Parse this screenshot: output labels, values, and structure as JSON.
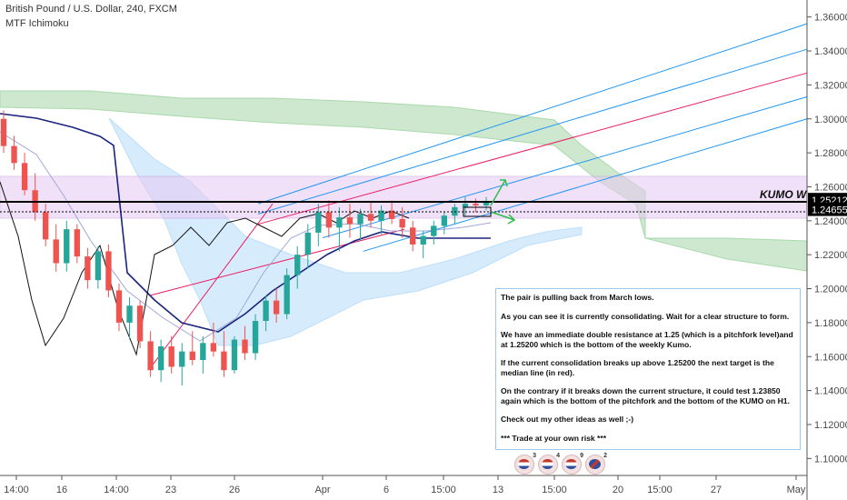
{
  "header": {
    "symbol": "British Pound / U.S. Dollar, 240, FXCM",
    "indicator": "MTF Ichimoku"
  },
  "note": {
    "paragraphs": [
      "The pair is pulling back from March lows.",
      "As you can see it is currently consolidating. Wait for a clear structure to form.",
      "We have an immediate double resistance at 1.25 (which is a pitchfork level)and at 1.25200 which is the bottom of the weekly Kumo.",
      "If the current consolidation breaks up above 1.25200 the next target is the median line (in red).",
      "On the contrary if it breaks down the current structure, it could test 1.23850 again which is the bottom of the pitchfork and the bottom of the KUMO on H1.",
      "Check out my other ideas as well ;-)",
      "*** Trade at your own risk ***"
    ]
  },
  "events": [
    {
      "count": "3",
      "flag": "us-flag-icon"
    },
    {
      "count": "4",
      "flag": "us-flag-icon"
    },
    {
      "count": "9",
      "flag": "us-flag-icon"
    },
    {
      "count": "2",
      "flag": "uk-flag-icon"
    }
  ],
  "chart_data": {
    "type": "candlestick",
    "title": "British Pound / U.S. Dollar, 240, FXCM",
    "x_tick_labels": [
      "14:00",
      "16",
      "14:00",
      "23",
      "26",
      "Apr",
      "6",
      "15:00",
      "13",
      "15:00",
      "20",
      "15:00",
      "27",
      "May"
    ],
    "y_tick_labels": [
      "1.36000",
      "1.34000",
      "1.32000",
      "1.30000",
      "1.28000",
      "1.26000",
      "1.24000",
      "1.22000",
      "1.20000",
      "1.18000",
      "1.16000",
      "1.14000",
      "1.12000",
      "1.10000"
    ],
    "ylim": [
      1.09,
      1.37
    ],
    "price_labels": [
      {
        "label": "1.25212",
        "value": 1.25212,
        "color": "#000000"
      },
      {
        "label": "1.24655",
        "value": 1.24655,
        "color": "#000000"
      }
    ],
    "annotations": [
      {
        "text": "KUMO W",
        "level": 1.25212
      }
    ],
    "zones": [
      {
        "name": "weekly-kumo-band",
        "from": 1.242,
        "to": 1.267,
        "color": "#e7c9f3"
      }
    ],
    "colors": {
      "up": "#26a69a",
      "down": "#ef5350",
      "median": "#e91e63",
      "pitchfork": "#2196f3",
      "kumo_weekly": "#a5d6a7",
      "kumo_h4": "#bbdefb",
      "kijun": "#1a237e"
    },
    "candles": [
      [
        1.3,
        1.305,
        1.28,
        1.284
      ],
      [
        1.284,
        1.29,
        1.27,
        1.274
      ],
      [
        1.274,
        1.28,
        1.255,
        1.258
      ],
      [
        1.258,
        1.268,
        1.24,
        1.245
      ],
      [
        1.245,
        1.25,
        1.225,
        1.229
      ],
      [
        1.229,
        1.238,
        1.21,
        1.215
      ],
      [
        1.215,
        1.24,
        1.21,
        1.235
      ],
      [
        1.235,
        1.238,
        1.215,
        1.219
      ],
      [
        1.219,
        1.224,
        1.2,
        1.205
      ],
      [
        1.205,
        1.225,
        1.2,
        1.222
      ],
      [
        1.222,
        1.226,
        1.195,
        1.199
      ],
      [
        1.199,
        1.203,
        1.175,
        1.18
      ],
      [
        1.18,
        1.195,
        1.17,
        1.19
      ],
      [
        1.19,
        1.193,
        1.165,
        1.169
      ],
      [
        1.169,
        1.175,
        1.148,
        1.152
      ],
      [
        1.152,
        1.17,
        1.145,
        1.166
      ],
      [
        1.166,
        1.172,
        1.15,
        1.154
      ],
      [
        1.154,
        1.168,
        1.143,
        1.163
      ],
      [
        1.163,
        1.175,
        1.155,
        1.158
      ],
      [
        1.158,
        1.172,
        1.15,
        1.168
      ],
      [
        1.168,
        1.18,
        1.16,
        1.163
      ],
      [
        1.163,
        1.175,
        1.148,
        1.152
      ],
      [
        1.152,
        1.172,
        1.15,
        1.17
      ],
      [
        1.17,
        1.178,
        1.158,
        1.162
      ],
      [
        1.162,
        1.185,
        1.158,
        1.181
      ],
      [
        1.181,
        1.196,
        1.175,
        1.193
      ],
      [
        1.193,
        1.2,
        1.18,
        1.185
      ],
      [
        1.185,
        1.212,
        1.182,
        1.208
      ],
      [
        1.208,
        1.225,
        1.2,
        1.22
      ],
      [
        1.22,
        1.238,
        1.212,
        1.233
      ],
      [
        1.233,
        1.25,
        1.225,
        1.245
      ],
      [
        1.245,
        1.252,
        1.23,
        1.236
      ],
      [
        1.236,
        1.248,
        1.222,
        1.242
      ],
      [
        1.242,
        1.25,
        1.23,
        1.238
      ],
      [
        1.238,
        1.247,
        1.228,
        1.244
      ],
      [
        1.244,
        1.251,
        1.236,
        1.24
      ],
      [
        1.24,
        1.249,
        1.232,
        1.246
      ],
      [
        1.246,
        1.252,
        1.238,
        1.241
      ],
      [
        1.241,
        1.248,
        1.23,
        1.236
      ],
      [
        1.236,
        1.24,
        1.222,
        1.226
      ],
      [
        1.226,
        1.234,
        1.218,
        1.231
      ],
      [
        1.231,
        1.24,
        1.226,
        1.237
      ],
      [
        1.237,
        1.245,
        1.232,
        1.243
      ],
      [
        1.243,
        1.25,
        1.238,
        1.248
      ],
      [
        1.248,
        1.254,
        1.243,
        1.25
      ],
      [
        1.25,
        1.253,
        1.245,
        1.249
      ],
      [
        1.249,
        1.254,
        1.246,
        1.251
      ]
    ],
    "pitchfork_lines": [
      {
        "name": "upper-outer",
        "from": [
          0.32,
          1.25
        ],
        "to": [
          1.0,
          1.356
        ],
        "color": "#2196f3"
      },
      {
        "name": "upper-inner",
        "from": [
          0.32,
          1.244
        ],
        "to": [
          1.0,
          1.341
        ],
        "color": "#2196f3"
      },
      {
        "name": "median",
        "from": [
          0.32,
          1.238
        ],
        "to": [
          1.0,
          1.327
        ],
        "color": "#e91e63"
      },
      {
        "name": "lower-inner",
        "from": [
          0.4,
          1.23
        ],
        "to": [
          1.0,
          1.313
        ],
        "color": "#2196f3"
      },
      {
        "name": "lower-outer",
        "from": [
          0.45,
          1.222
        ],
        "to": [
          1.0,
          1.3
        ],
        "color": "#2196f3"
      }
    ]
  }
}
